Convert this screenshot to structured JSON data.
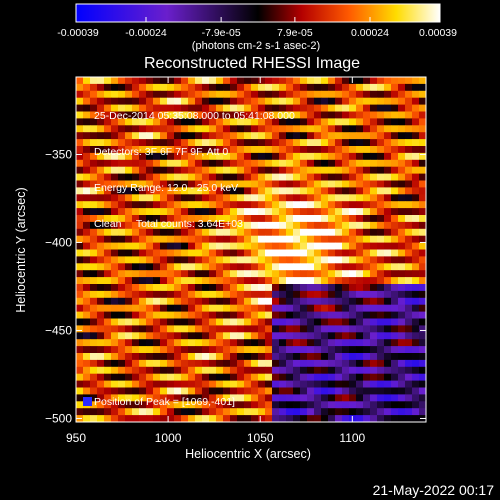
{
  "chart_data": {
    "type": "heatmap",
    "title": "Reconstructed RHESSI Image",
    "xlabel": "Heliocentric X (arcsec)",
    "ylabel": "Heliocentric Y (arcsec)",
    "xlim": [
      950,
      1140
    ],
    "ylim": [
      -502,
      -306
    ],
    "x_ticks": [
      950,
      1000,
      1050,
      1100
    ],
    "x_tick_labels": [
      "950",
      "1000",
      "1050",
      "1100"
    ],
    "y_ticks": [
      -350,
      -400,
      -450,
      -500
    ],
    "y_tick_labels": [
      "-350",
      "-400",
      "-450",
      "-500"
    ],
    "colorbar": {
      "range": [
        -0.00039,
        0.00039
      ],
      "ticks": [
        -0.00039,
        -0.00024,
        -7.9e-05,
        7.9e-05,
        0.00024,
        0.00039
      ],
      "tick_labels": [
        "-0.00039",
        "-0.00024",
        "-7.9e-05",
        "7.9e-05",
        "0.00024",
        "0.00039"
      ],
      "units_label": "(photons cm-2 s-1 asec-2)",
      "colors": [
        "#0000ff",
        "#6a1fcc",
        "#000000",
        "#b40000",
        "#ff5a00",
        "#ffdc00",
        "#ffffff"
      ]
    },
    "peak": {
      "x": 1069,
      "y": -401
    },
    "annotations": [
      "25-Dec-2014 05:35:08.000 to 05:41:08.000",
      "Detectors: 3F 6F 7F 9F, Att 0",
      "Energy Range: 12.0 - 25.0 keV",
      "Clean     Total counts: 3.64E+03"
    ],
    "peak_label": "Position of Peak = [1069,-401]"
  },
  "footer": {
    "timestamp": "21-May-2022 00:17"
  }
}
